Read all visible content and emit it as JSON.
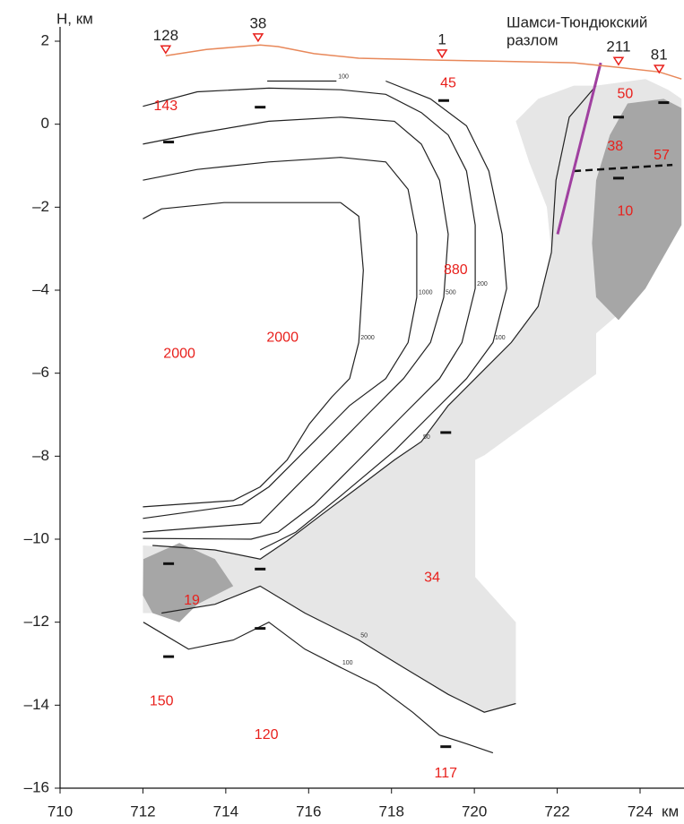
{
  "chart_data": {
    "type": "section",
    "y_label": "Н, км",
    "x_unit": "км",
    "xlim": [
      710,
      725
    ],
    "ylim": [
      -16,
      2
    ],
    "xticks": [
      710,
      712,
      714,
      716,
      718,
      720,
      722,
      724
    ],
    "yticks": [
      2,
      0,
      {
        "value": -2,
        "label": "–2"
      },
      {
        "value": -4,
        "label": "–4"
      },
      {
        "value": -6,
        "label": "–6"
      },
      {
        "value": -8,
        "label": "–8"
      },
      {
        "value": -10,
        "label": "–10"
      },
      {
        "value": -12,
        "label": "–12"
      },
      {
        "value": -14,
        "label": "–14"
      },
      {
        "value": -16,
        "label": "–16"
      }
    ],
    "regions": [
      {
        "color": "#e6e6e6",
        "x": [
          722.94,
          724.13,
          724.68,
          725,
          725,
          723.7,
          722.94,
          722.94,
          720.24,
          720.02,
          720.02,
          721.0,
          721.0,
          720.24,
          719.37,
          718.29,
          717.21,
          715.91,
          714.83,
          713.74,
          712.45,
          712.0,
          712.0,
          713.74,
          714.83,
          715.48,
          716.34,
          717.21,
          718.07,
          718.72,
          719.37,
          720.02,
          720.89,
          721.54,
          721.86,
          721.75,
          721.32,
          721.0,
          721.54,
          722.4
        ],
        "y": [
          0.93,
          1.09,
          0.83,
          0.61,
          -2.43,
          -4.39,
          -5.04,
          -6.02,
          -7.98,
          -8.09,
          -10.91,
          -12.0,
          -13.96,
          -14.17,
          -13.74,
          -13.09,
          -12.43,
          -11.78,
          -11.13,
          -11.57,
          -11.78,
          -11.78,
          -10.15,
          -10.26,
          -10.48,
          -10.04,
          -9.39,
          -8.74,
          -8.09,
          -7.65,
          -6.78,
          -6.13,
          -5.26,
          -4.39,
          -3.09,
          -2.0,
          -0.91,
          0.07,
          0.61,
          0.93
        ]
      },
      {
        "color": "#a6a6a6",
        "x": [
          723.7,
          724.57,
          725,
          725,
          724.13,
          723.48,
          722.94,
          722.84,
          722.94,
          723.27
        ],
        "y": [
          0.5,
          0.61,
          0.39,
          -2.43,
          -3.96,
          -4.72,
          -4.17,
          -2.87,
          -1.35,
          -0.26
        ]
      },
      {
        "color": "#a6a6a6",
        "x": [
          712.01,
          712.88,
          713.74,
          714.18,
          713.31,
          712.88,
          712.23,
          712.0
        ],
        "y": [
          -10.48,
          -10.09,
          -10.48,
          -11.13,
          -11.57,
          -12.0,
          -11.78,
          -11.35
        ]
      }
    ],
    "contours": [
      {
        "label": "100",
        "x": [
          715.0,
          716.67
        ],
        "y": [
          1.04,
          1.04
        ]
      },
      {
        "label": "100",
        "x": [
          717.86,
          718.94,
          719.81,
          720.35,
          720.67,
          720.78,
          720.45,
          719.81,
          718.94,
          718.07,
          716.77,
          715.69,
          714.83
        ],
        "y": [
          1.04,
          0.61,
          -0.04,
          -1.13,
          -2.65,
          -3.96,
          -5.26,
          -6.13,
          -7.0,
          -7.87,
          -8.96,
          -9.83,
          -10.26
        ]
      },
      {
        "label": "200",
        "x": [
          712.0,
          713.31,
          715.04,
          716.77,
          717.86,
          718.72,
          719.37,
          719.81,
          720.02,
          720.02,
          719.7,
          719.16,
          718.29,
          717.21,
          716.13,
          715.26,
          714.61,
          712.0
        ],
        "y": [
          0.43,
          0.78,
          0.87,
          0.83,
          0.72,
          0.28,
          -0.26,
          -1.13,
          -2.43,
          -3.96,
          -5.26,
          -6.13,
          -7.0,
          -8.09,
          -9.17,
          -9.83,
          -10.0,
          -9.98
        ]
      },
      {
        "label": "500",
        "x": [
          712.0,
          713.31,
          715.04,
          716.77,
          718.07,
          718.72,
          719.16,
          719.37,
          719.26,
          718.94,
          718.29,
          717.42,
          716.56,
          715.69,
          714.83,
          712.0
        ],
        "y": [
          -0.48,
          -0.22,
          0.07,
          0.17,
          0.07,
          -0.48,
          -1.35,
          -2.65,
          -4.17,
          -5.26,
          -6.13,
          -7.0,
          -7.87,
          -8.74,
          -9.61,
          -9.83
        ]
      },
      {
        "label": "1000",
        "x": [
          712.0,
          713.31,
          715.04,
          716.77,
          717.86,
          718.4,
          718.61,
          718.61,
          718.4,
          717.86,
          716.99,
          716.13,
          715.04,
          714.39,
          712.0
        ],
        "y": [
          -1.35,
          -1.09,
          -0.91,
          -0.8,
          -0.91,
          -1.57,
          -2.65,
          -4.17,
          -5.26,
          -6.13,
          -6.78,
          -7.65,
          -8.74,
          -9.17,
          -9.5
        ]
      },
      {
        "label": "2000",
        "x": [
          712.0,
          712.45,
          713.96,
          715.69,
          716.77,
          717.21,
          717.32,
          717.21,
          716.99,
          716.56,
          716.02,
          715.48,
          714.83,
          714.18,
          712.0
        ],
        "y": [
          -2.28,
          -2.04,
          -1.89,
          -1.89,
          -1.89,
          -2.22,
          -3.52,
          -5.26,
          -6.13,
          -6.57,
          -7.22,
          -8.09,
          -8.74,
          -9.07,
          -9.22
        ]
      },
      {
        "label": "50",
        "x": [
          722.94,
          722.29,
          721.97,
          721.86,
          721.54,
          720.89,
          720.02,
          719.37,
          718.72,
          718.07,
          717.21,
          716.34,
          715.48,
          714.83,
          713.74,
          712.23
        ],
        "y": [
          0.93,
          0.17,
          -1.35,
          -3.09,
          -4.39,
          -5.26,
          -6.13,
          -6.78,
          -7.65,
          -8.09,
          -8.74,
          -9.39,
          -10.04,
          -10.48,
          -10.26,
          -10.15
        ]
      },
      {
        "label": "50",
        "x": [
          712.45,
          713.74,
          714.83,
          715.91,
          717.21,
          718.29,
          719.37,
          720.24,
          721.0
        ],
        "y": [
          -11.78,
          -11.57,
          -11.13,
          -11.78,
          -12.43,
          -13.09,
          -13.74,
          -14.17,
          -13.96
        ]
      },
      {
        "label": "100",
        "x": [
          712.01,
          713.1,
          714.18,
          715.04,
          715.91,
          716.77,
          717.64,
          718.51,
          719.16,
          719.81,
          720.45
        ],
        "y": [
          -12.0,
          -12.65,
          -12.43,
          -12.0,
          -12.65,
          -13.09,
          -13.52,
          -14.17,
          -14.72,
          -14.93,
          -15.15
        ]
      }
    ],
    "surface": {
      "color": "#e8885a",
      "x": [
        712.55,
        713.53,
        714.83,
        715.26,
        716.13,
        717.21,
        719.22,
        720.45,
        722.4,
        723.48,
        724.46,
        725
      ],
      "y": [
        1.65,
        1.8,
        1.91,
        1.87,
        1.7,
        1.59,
        1.54,
        1.52,
        1.48,
        1.37,
        1.26,
        1.09
      ]
    },
    "fault": {
      "label": [
        "Шамси-Тюндюкский",
        "разлом"
      ],
      "color": "#a040a0",
      "x": [
        722.01,
        723.05
      ],
      "y": [
        -2.65,
        1.48
      ]
    },
    "dashed_line": {
      "x": [
        722.4,
        724.78
      ],
      "y": [
        -1.13,
        -0.98
      ]
    },
    "stations": [
      {
        "label": 128,
        "x": 712.55,
        "y": 1.8
      },
      {
        "label": 38,
        "x": 714.78,
        "y": 2.09
      },
      {
        "label": 1,
        "x": 719.22,
        "y": 1.7
      },
      {
        "label": 211,
        "x": 723.48,
        "y": 1.52
      },
      {
        "label": 81,
        "x": 724.46,
        "y": 1.33
      }
    ],
    "points": {
      "x": [
        712.62,
        714.83,
        719.26,
        723.48,
        723.48,
        724.57,
        719.31,
        712.62,
        714.83,
        712.62,
        714.83,
        719.31
      ],
      "y": [
        -0.43,
        0.41,
        0.57,
        0.17,
        -1.3,
        0.52,
        -7.43,
        -10.59,
        -10.72,
        -12.83,
        -12.15,
        -15.0
      ]
    },
    "resistivity": {
      "color": "#e8201c",
      "values": [
        143,
        45,
        50,
        38,
        57,
        10,
        880,
        2000,
        2000,
        34,
        19,
        150,
        120,
        117
      ],
      "x": [
        712.55,
        719.37,
        723.64,
        723.4,
        724.52,
        723.64,
        719.55,
        715.37,
        712.88,
        718.98,
        713.18,
        712.45,
        714.98,
        719.31
      ],
      "y": [
        0.43,
        0.98,
        0.72,
        -0.54,
        -0.76,
        -2.11,
        -3.52,
        -5.15,
        -5.54,
        -10.93,
        -11.48,
        -13.91,
        -14.72,
        -15.65
      ]
    }
  }
}
